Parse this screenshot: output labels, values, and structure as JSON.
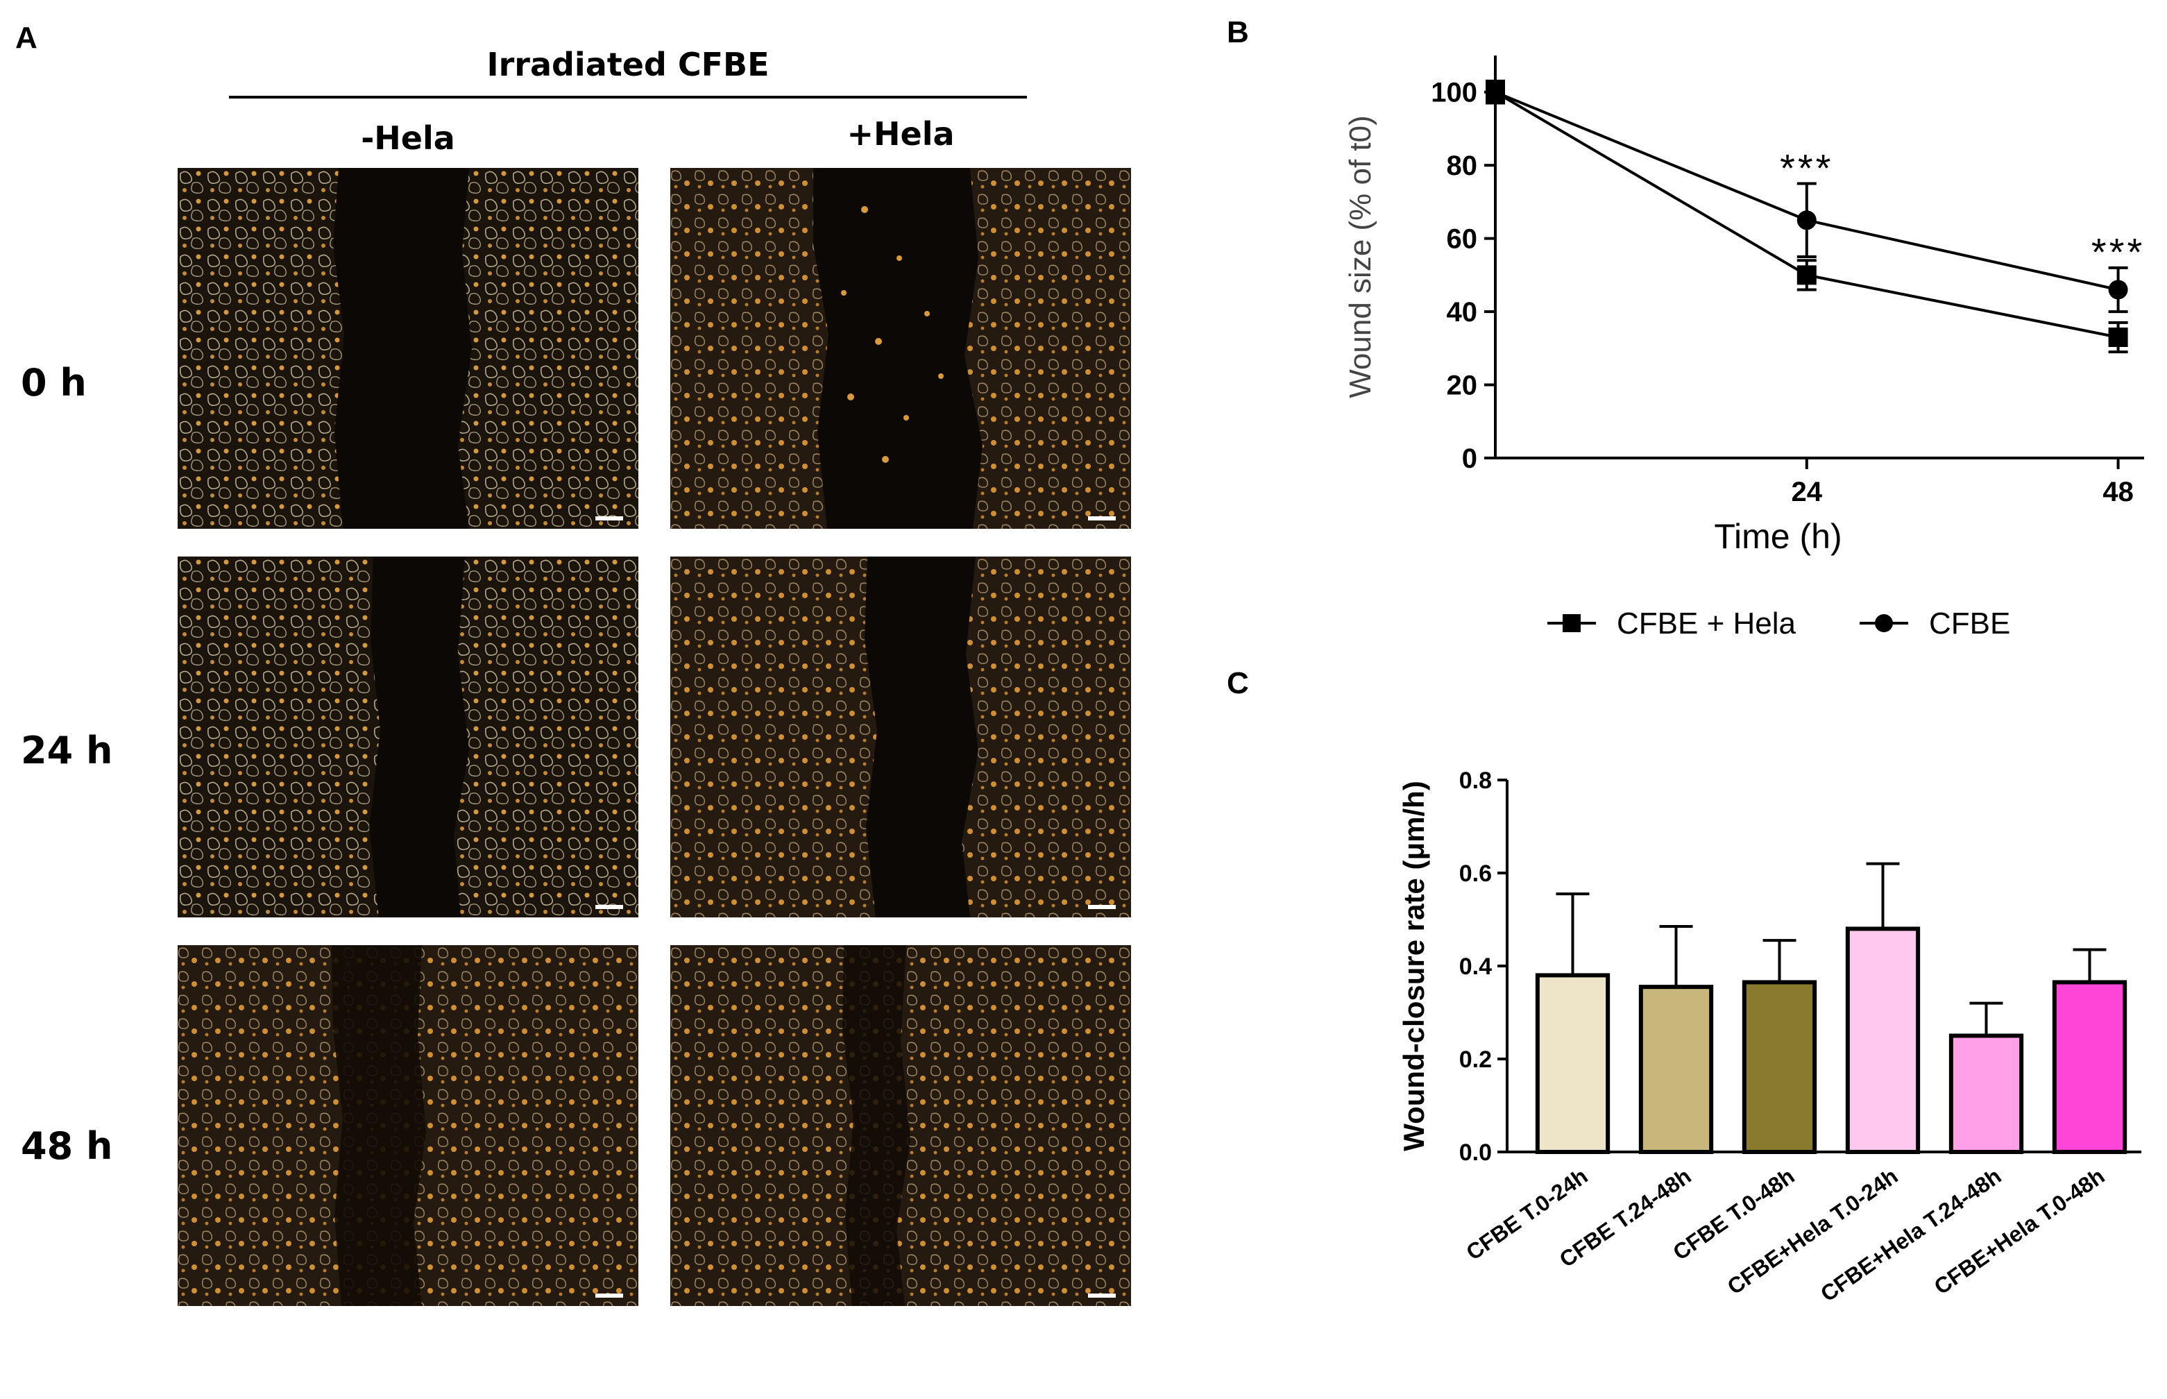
{
  "panel_a": {
    "letter": "A",
    "header": "Irradiated CFBE",
    "columns": [
      "-Hela",
      "+Hela"
    ],
    "rows": [
      "0 h",
      "24 h",
      "48 h"
    ]
  },
  "panel_b": {
    "letter": "B"
  },
  "panel_c": {
    "letter": "C"
  },
  "colors": {
    "ink": "#000000",
    "cell_dark": "#0b0805",
    "cell_orange": "#d99a3a",
    "cell_pale": "#b8a98a"
  },
  "chart_data": [
    {
      "id": "B",
      "type": "line",
      "title": "",
      "xlabel": "Time (h)",
      "ylabel": "Wound size (% of t0)",
      "x": [
        0,
        24,
        48
      ],
      "xticks": [
        "24",
        "48"
      ],
      "xlim": [
        0,
        50
      ],
      "ylim": [
        0,
        110
      ],
      "yticks": [
        "0",
        "20",
        "40",
        "60",
        "80",
        "100"
      ],
      "series": [
        {
          "name": "CFBE + Hela",
          "marker": "square",
          "values": [
            100,
            50,
            33
          ],
          "errors": [
            3,
            4,
            4
          ]
        },
        {
          "name": "CFBE",
          "marker": "circle",
          "values": [
            100,
            65,
            46
          ],
          "errors": [
            3,
            10,
            6
          ]
        }
      ],
      "annotations": [
        {
          "x": 24,
          "y": 79,
          "text": "***"
        },
        {
          "x": 48,
          "y": 56,
          "text": "***"
        }
      ],
      "legend": "bottom"
    },
    {
      "id": "C",
      "type": "bar",
      "title": "",
      "xlabel": "",
      "ylabel": "Wound-closure rate (μm/h)",
      "categories": [
        "CFBE T.0-24h",
        "CFBE T.24-48h",
        "CFBE T.0-48h",
        "CFBE+Hela T.0-24h",
        "CFBE+Hela T.24-48h",
        "CFBE+Hela T.0-48h"
      ],
      "values": [
        0.38,
        0.355,
        0.365,
        0.48,
        0.25,
        0.365
      ],
      "errors": [
        0.175,
        0.13,
        0.09,
        0.14,
        0.07,
        0.07
      ],
      "bar_colors": [
        "#eee5c8",
        "#c8b67a",
        "#8a7a2e",
        "#ffc8ee",
        "#ffa0e8",
        "#ff44d8"
      ],
      "ylim": [
        0,
        0.8
      ],
      "yticks": [
        "0.0",
        "0.2",
        "0.4",
        "0.6",
        "0.8"
      ]
    }
  ]
}
